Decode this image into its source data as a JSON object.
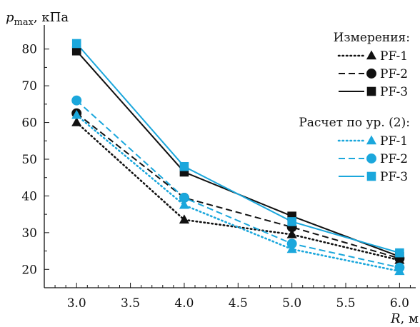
{
  "chart_data": {
    "type": "line",
    "title": "",
    "xlabel": "R, м",
    "xlabel_var": "R",
    "xlabel_unit": ", м",
    "ylabel": "p_max, кПа",
    "ylabel_var": "p",
    "ylabel_sub": "max",
    "ylabel_unit": ", кПа",
    "x": [
      3.0,
      4.0,
      5.0,
      6.0
    ],
    "xlim": [
      2.7,
      6.15
    ],
    "ylim": [
      15,
      85
    ],
    "xticks": [
      "3.0",
      "3.5",
      "4.0",
      "4.5",
      "5.0",
      "5.5",
      "6.0"
    ],
    "yticks": [
      "20",
      "30",
      "40",
      "50",
      "60",
      "70",
      "80"
    ],
    "grid": false,
    "legend_position": "top-right",
    "legend_groups": [
      {
        "title": "Измерения:",
        "series": [
          0,
          1,
          2
        ]
      },
      {
        "title": "Расчет по ур. (2):",
        "series": [
          3,
          4,
          5
        ]
      }
    ],
    "series": [
      {
        "name": "PF-1",
        "group": "Измерения:",
        "values": [
          60.0,
          33.5,
          29.5,
          22.5
        ],
        "color": "#111111",
        "dash": "dotted",
        "marker": "triangle"
      },
      {
        "name": "PF-2",
        "group": "Измерения:",
        "values": [
          62.5,
          39.5,
          31.5,
          23.0
        ],
        "color": "#111111",
        "dash": "dashed",
        "marker": "circle"
      },
      {
        "name": "PF-3",
        "group": "Измерения:",
        "values": [
          79.5,
          46.5,
          34.5,
          23.5
        ],
        "color": "#111111",
        "dash": "solid",
        "marker": "square"
      },
      {
        "name": "PF-1",
        "group": "Расчет по ур. (2):",
        "values": [
          62.0,
          37.5,
          25.5,
          19.5
        ],
        "color": "#1ba7dc",
        "dash": "dotted",
        "marker": "triangle"
      },
      {
        "name": "PF-2",
        "group": "Расчет по ур. (2):",
        "values": [
          66.0,
          39.5,
          27.0,
          20.5
        ],
        "color": "#1ba7dc",
        "dash": "dashed",
        "marker": "circle"
      },
      {
        "name": "PF-3",
        "group": "Расчет по ур. (2):",
        "values": [
          81.5,
          48.0,
          33.0,
          24.5
        ],
        "color": "#1ba7dc",
        "dash": "solid",
        "marker": "square"
      }
    ]
  }
}
